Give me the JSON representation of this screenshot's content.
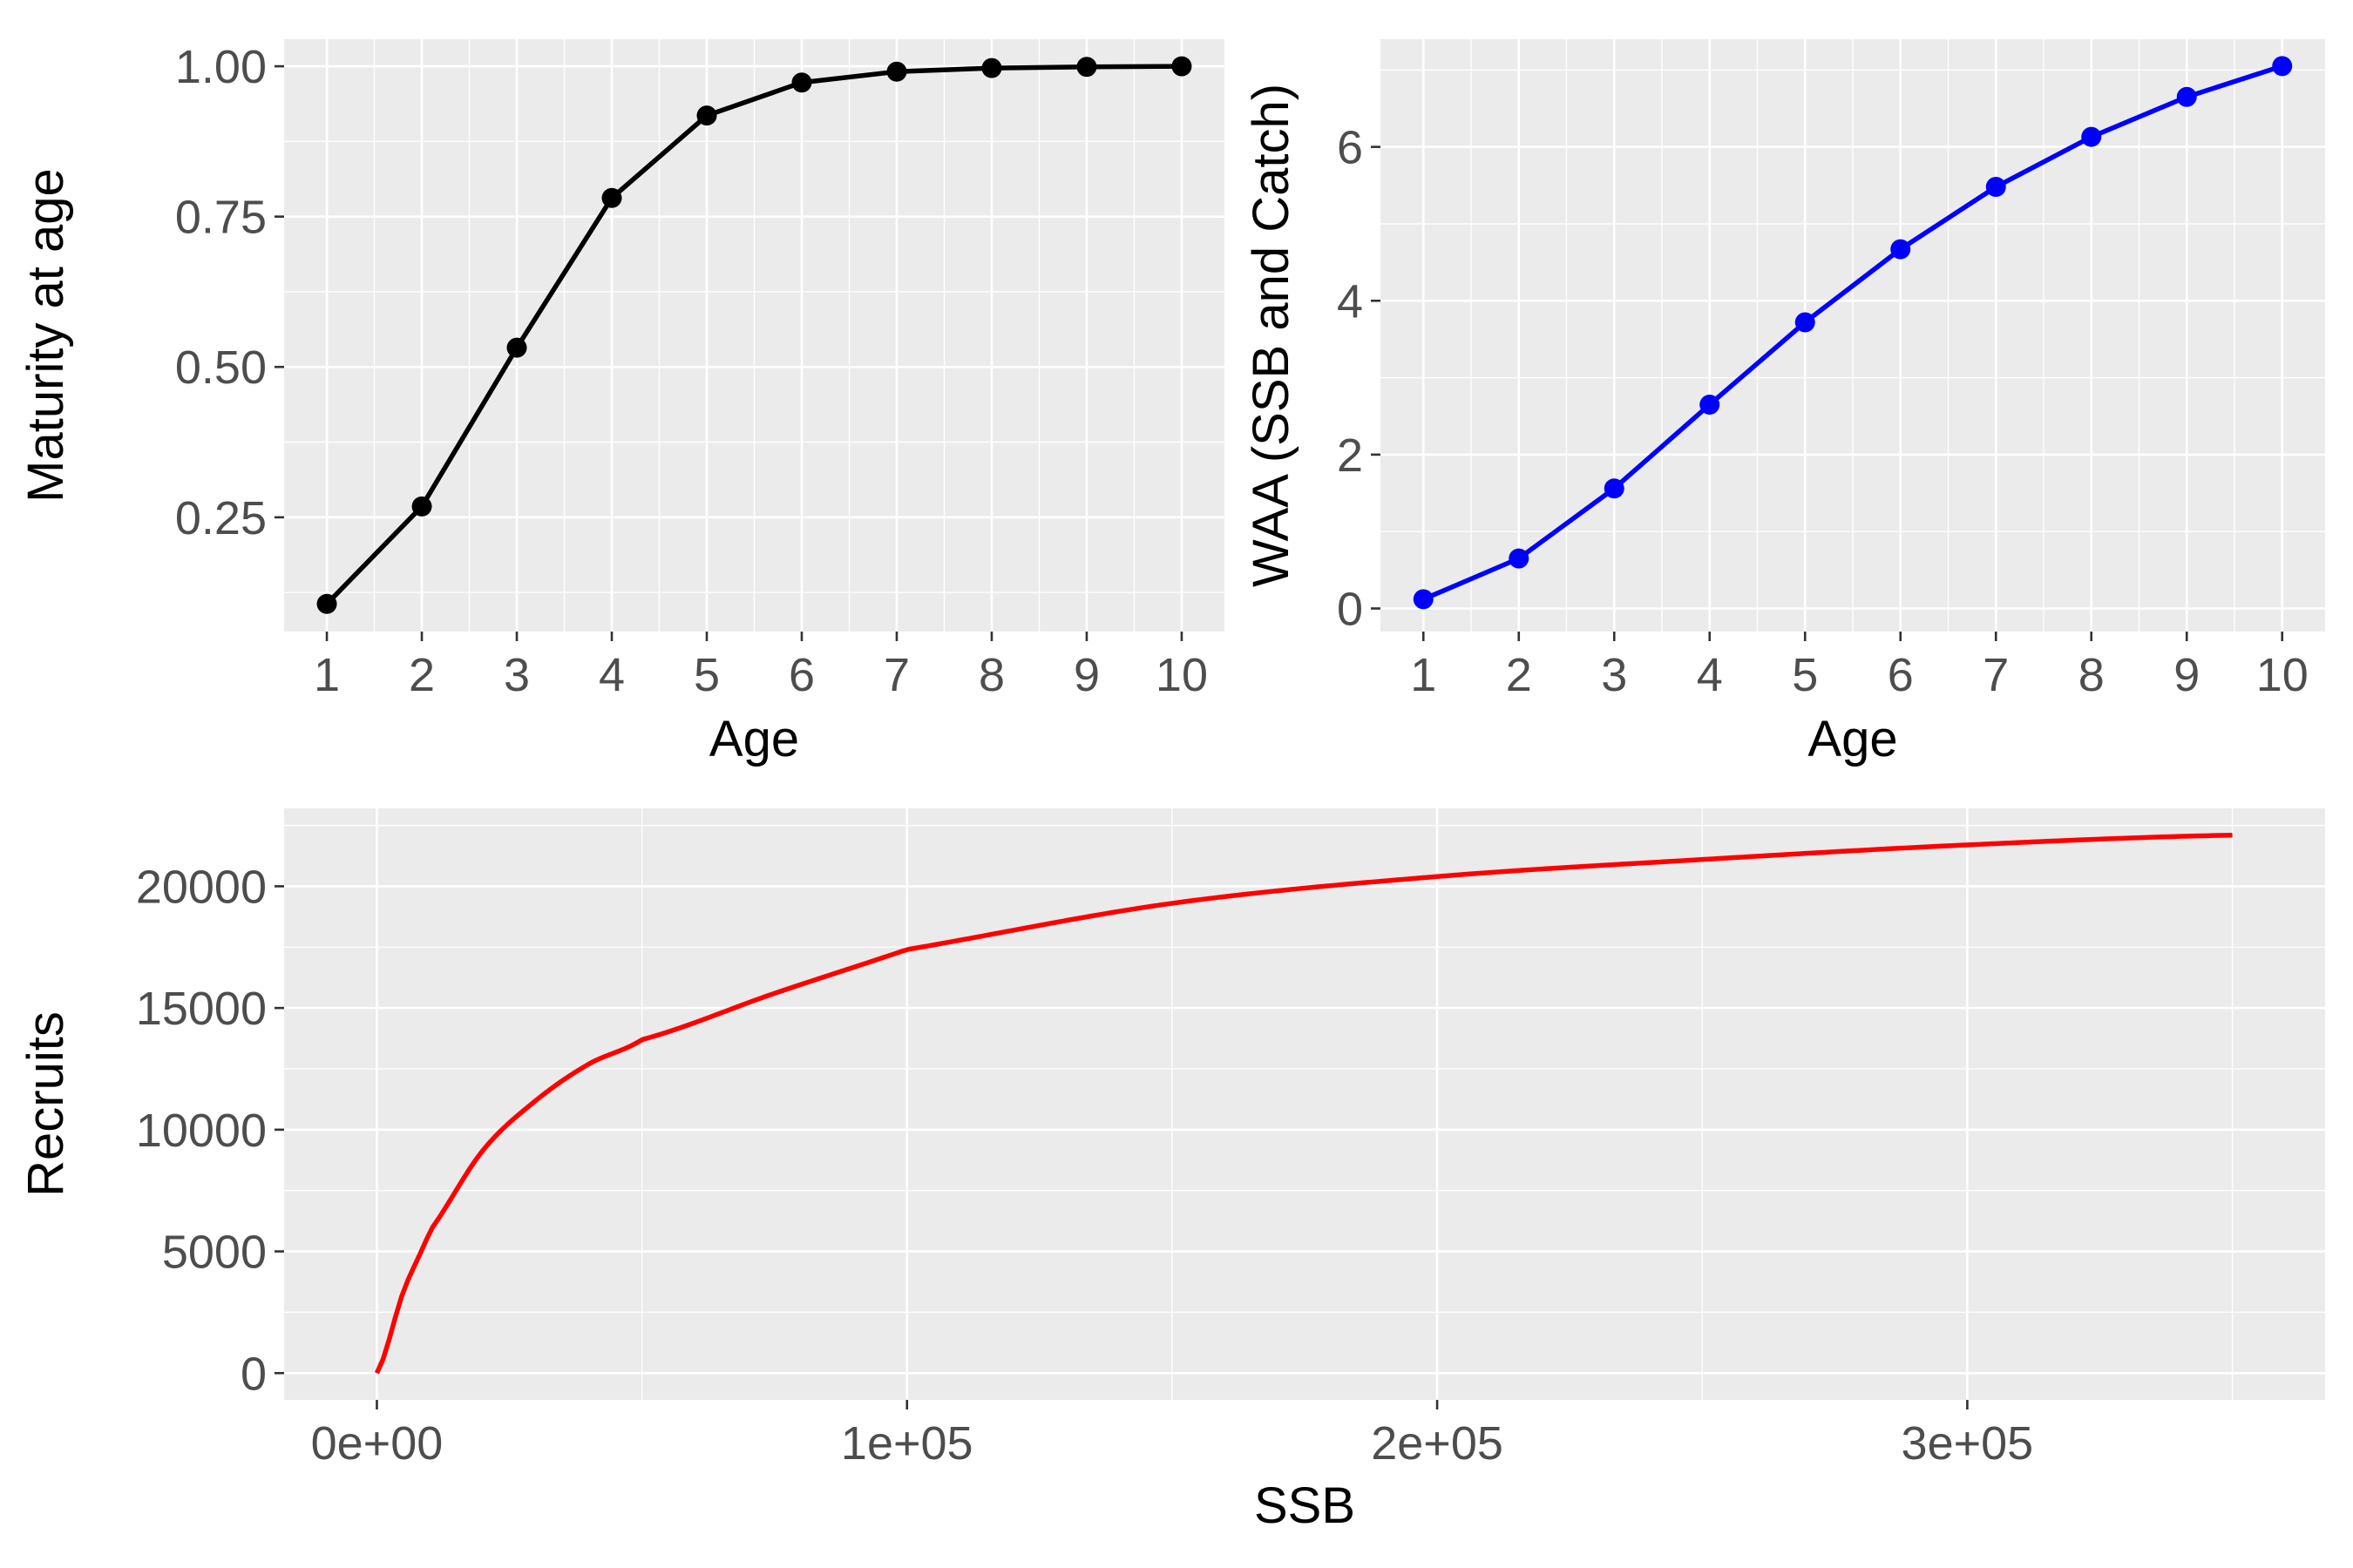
{
  "chart_data": [
    {
      "id": "maturity",
      "type": "line",
      "markers": true,
      "color": "#000000",
      "xlabel": "Age",
      "ylabel": "Maturity at age",
      "x": [
        1,
        2,
        3,
        4,
        5,
        6,
        7,
        8,
        9,
        10
      ],
      "y": [
        0.106,
        0.268,
        0.532,
        0.781,
        0.918,
        0.973,
        0.991,
        0.997,
        0.999,
        1.0
      ],
      "xlim": [
        0.55,
        10.45
      ],
      "ylim": [
        0.06,
        1.045
      ],
      "xticks": [
        1,
        2,
        3,
        4,
        5,
        6,
        7,
        8,
        9,
        10
      ],
      "xtick_labels": [
        "1",
        "2",
        "3",
        "4",
        "5",
        "6",
        "7",
        "8",
        "9",
        "10"
      ],
      "yticks": [
        0.25,
        0.5,
        0.75,
        1.0
      ],
      "ytick_labels": [
        "0.25",
        "0.50",
        "0.75",
        "1.00"
      ],
      "grid": true,
      "background": "#ebebeb"
    },
    {
      "id": "waa",
      "type": "line",
      "markers": true,
      "color": "#0000ff",
      "xlabel": "Age",
      "ylabel": "WAA (SSB and Catch)",
      "x": [
        1,
        2,
        3,
        4,
        5,
        6,
        7,
        8,
        9,
        10
      ],
      "y": [
        0.12,
        0.65,
        1.56,
        2.65,
        3.72,
        4.67,
        5.48,
        6.13,
        6.65,
        7.05
      ],
      "xlim": [
        0.55,
        10.45
      ],
      "ylim": [
        -0.3,
        7.4
      ],
      "xticks": [
        1,
        2,
        3,
        4,
        5,
        6,
        7,
        8,
        9,
        10
      ],
      "xtick_labels": [
        "1",
        "2",
        "3",
        "4",
        "5",
        "6",
        "7",
        "8",
        "9",
        "10"
      ],
      "yticks": [
        0,
        2,
        4,
        6
      ],
      "ytick_labels": [
        "0",
        "2",
        "4",
        "6"
      ],
      "grid": true,
      "background": "#ebebeb"
    },
    {
      "id": "recruitment",
      "type": "line",
      "markers": false,
      "color": "#ff0000",
      "xlabel": "SSB",
      "ylabel": "Recruits",
      "curve": "Beverton-Holt",
      "x": [
        0,
        5000,
        10000,
        20000,
        30000,
        40000,
        50000,
        75000,
        100000,
        150000,
        200000,
        250000,
        300000,
        350000
      ],
      "y": [
        0,
        3350,
        5840,
        9150,
        11200,
        12700,
        13700,
        15600,
        17400,
        19300,
        20400,
        21100,
        21700,
        22100
      ],
      "xlim": [
        -17500,
        367500
      ],
      "ylim": [
        -1100,
        23200
      ],
      "xticks": [
        0,
        100000,
        200000,
        300000
      ],
      "xtick_labels": [
        "0e+00",
        "1e+05",
        "2e+05",
        "3e+05"
      ],
      "yticks": [
        0,
        5000,
        10000,
        15000,
        20000
      ],
      "ytick_labels": [
        "0",
        "5000",
        "10000",
        "15000",
        "20000"
      ],
      "grid": true,
      "background": "#ebebeb"
    }
  ]
}
